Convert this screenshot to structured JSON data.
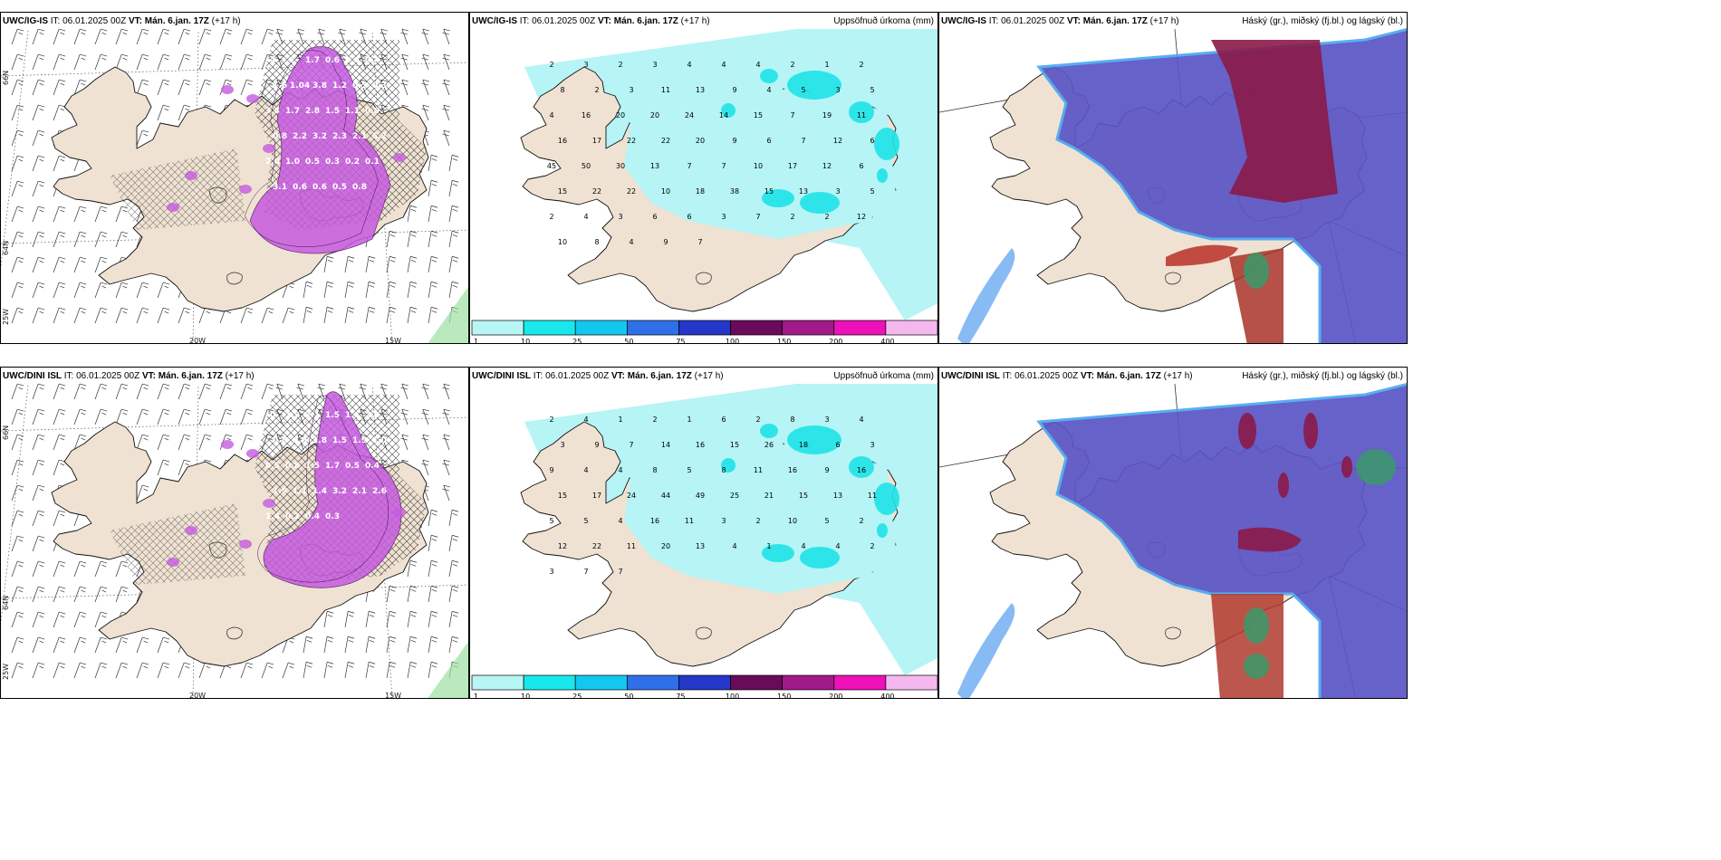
{
  "panels": [
    {
      "model": "UWC/IG-IS",
      "it": "IT: 06.01.2025 00Z",
      "vt": "VT: Mán. 6.jan. 17Z",
      "lead": "(+17 h)",
      "right": ""
    },
    {
      "model": "UWC/IG-IS",
      "it": "IT: 06.01.2025 00Z",
      "vt": "VT: Mán. 6.jan. 17Z",
      "lead": "(+17 h)",
      "right": "Uppsöfnuð úrkoma (mm)"
    },
    {
      "model": "UWC/IG-IS",
      "it": "IT: 06.01.2025 00Z",
      "vt": "VT: Mán. 6.jan. 17Z",
      "lead": "(+17 h)",
      "right": "Háský (gr.), miðský (fj.bl.) og lágský (bl.)"
    },
    {
      "model": "UWC/DINI ISL",
      "it": "IT: 06.01.2025 00Z",
      "vt": "VT: Mán. 6.jan. 17Z",
      "lead": "(+17 h)",
      "right": ""
    },
    {
      "model": "UWC/DINI ISL",
      "it": "IT: 06.01.2025 00Z",
      "vt": "VT: Mán. 6.jan. 17Z",
      "lead": "(+17 h)",
      "right": "Uppsöfnuð úrkoma (mm)"
    },
    {
      "model": "UWC/DINI ISL",
      "it": "IT: 06.01.2025 00Z",
      "vt": "VT: Mán. 6.jan. 17Z",
      "lead": "(+17 h)",
      "right": "Háský (gr.), miðský (fj.bl.) og lágský (bl.)"
    }
  ],
  "axis_labels": {
    "lat66": "66N",
    "lat64": "64N",
    "lon25": "25W",
    "lon20": "20W",
    "lon15": "15W"
  },
  "colorbar": {
    "ticks": [
      "1",
      "10",
      "25",
      "50",
      "75",
      "100",
      "150",
      "200",
      "400"
    ],
    "colors": [
      "#b8f5f5",
      "#18e8ec",
      "#12c8ee",
      "#2f6fe8",
      "#2437c8",
      "#6a0a5a",
      "#a01a88",
      "#ee10b8",
      "#f4b8ee"
    ]
  },
  "colors": {
    "land": "#efe2d2",
    "precip_light": "#b6f4f6",
    "precip_mid": "#1ee3e8",
    "wind_snow": "#c65be0",
    "low_cloud": "#5b54c6",
    "mid_cloud": "#8a1a48",
    "high_cloud": "#3a9a6a"
  },
  "precip_values_top": [
    "2",
    "3",
    "2",
    "3",
    "4",
    "4",
    "4",
    "2",
    "1",
    "2",
    "8",
    "2",
    "3",
    "11",
    "13",
    "9",
    "4",
    "5",
    "3",
    "5",
    "4",
    "16",
    "20",
    "20",
    "24",
    "14",
    "15",
    "7",
    "19",
    "11",
    "16",
    "17",
    "22",
    "22",
    "20",
    "9",
    "6",
    "7",
    "12",
    "6",
    "45",
    "50",
    "30",
    "13",
    "7",
    "7",
    "10",
    "17",
    "12",
    "6",
    "15",
    "22",
    "22",
    "10",
    "18",
    "38",
    "15",
    "13",
    "3",
    "5",
    "2",
    "4",
    "3",
    "6",
    "6",
    "3",
    "7",
    "2",
    "2",
    "12",
    "10",
    "8",
    "4",
    "9",
    "7"
  ],
  "precip_values_bottom": [
    "2",
    "4",
    "1",
    "2",
    "1",
    "6",
    "2",
    "8",
    "3",
    "4",
    "3",
    "9",
    "7",
    "14",
    "16",
    "15",
    "26",
    "18",
    "6",
    "3",
    "9",
    "4",
    "4",
    "8",
    "5",
    "8",
    "11",
    "16",
    "9",
    "16",
    "15",
    "17",
    "24",
    "44",
    "49",
    "25",
    "21",
    "15",
    "13",
    "11",
    "5",
    "5",
    "4",
    "16",
    "11",
    "3",
    "2",
    "10",
    "5",
    "2",
    "12",
    "22",
    "11",
    "20",
    "13",
    "4",
    "1",
    "4",
    "4",
    "2",
    "3",
    "7",
    "7"
  ],
  "wind_values_top": [
    "4",
    "2",
    "1.7",
    "0.6",
    "0.4",
    "0.4",
    "1.6",
    "1.04",
    "3.8",
    "1.2",
    "0.5",
    "0.3",
    "3.3",
    "1.7",
    "2.8",
    "1.5",
    "1.1",
    "0.6",
    "0.8",
    "2.2",
    "3.2",
    "2.3",
    "2.1",
    "5.2",
    "2.0",
    "1.0",
    "0.5",
    "0.3",
    "0.2",
    "0.1",
    "3.1",
    "0.6",
    "0.6",
    "0.5",
    "0.8"
  ],
  "wind_values_bottom": [
    "0",
    "1.9",
    "2.1",
    "1.5",
    "1.6",
    "2.0",
    "0.8",
    "0.6",
    "1.8",
    "1.5",
    "1.9",
    "1.0",
    "0.5",
    "0.8",
    "1.5",
    "1.7",
    "0.5",
    "0.4",
    "1.9",
    "1.1",
    "1.4",
    "3.2",
    "2.1",
    "2.6",
    "1.4",
    "0.2",
    "0.4",
    "0.3"
  ]
}
